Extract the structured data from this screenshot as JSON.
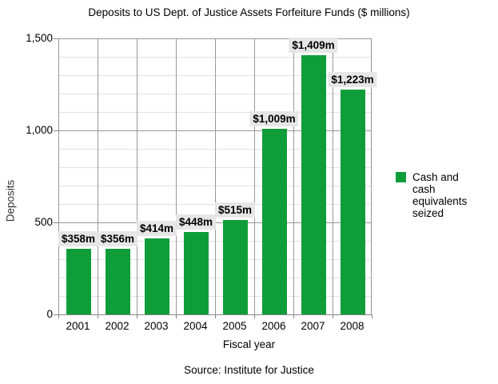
{
  "source_note": "Source: Institute for Justice",
  "colors": {
    "bar_green": "#0f9d3a",
    "label_chip_bg": "#e6e6e6",
    "grid_major": "#999999",
    "grid_minor": "#e0e0e0",
    "axis_line": "#878787"
  },
  "chart_data": {
    "type": "bar",
    "title": "Deposits to US Dept. of Justice Assets Forfeiture Funds ($ millions)",
    "categories": [
      "2001",
      "2002",
      "2003",
      "2004",
      "2005",
      "2006",
      "2007",
      "2008"
    ],
    "values": [
      358,
      356,
      414,
      448,
      515,
      1009,
      1409,
      1223
    ],
    "bar_labels": [
      "$358m",
      "$356m",
      "$414m",
      "$448m",
      "$515m",
      "$1,009m",
      "$1,409m",
      "$1,223m"
    ],
    "xlabel": "Fiscal year",
    "ylabel": "Deposits",
    "ylim": [
      0,
      1500
    ],
    "ytick_major": 500,
    "ytick_minor": 100,
    "ytick_labels": [
      "0",
      "500",
      "1,000",
      "1,500"
    ],
    "grid": true,
    "bar_color": "#0f9d3a",
    "label_bg": "#e6e6e6",
    "legend": {
      "position": "right",
      "entries": [
        {
          "label": "Cash and cash equivalents seized",
          "color": "#0f9d3a"
        }
      ]
    }
  }
}
